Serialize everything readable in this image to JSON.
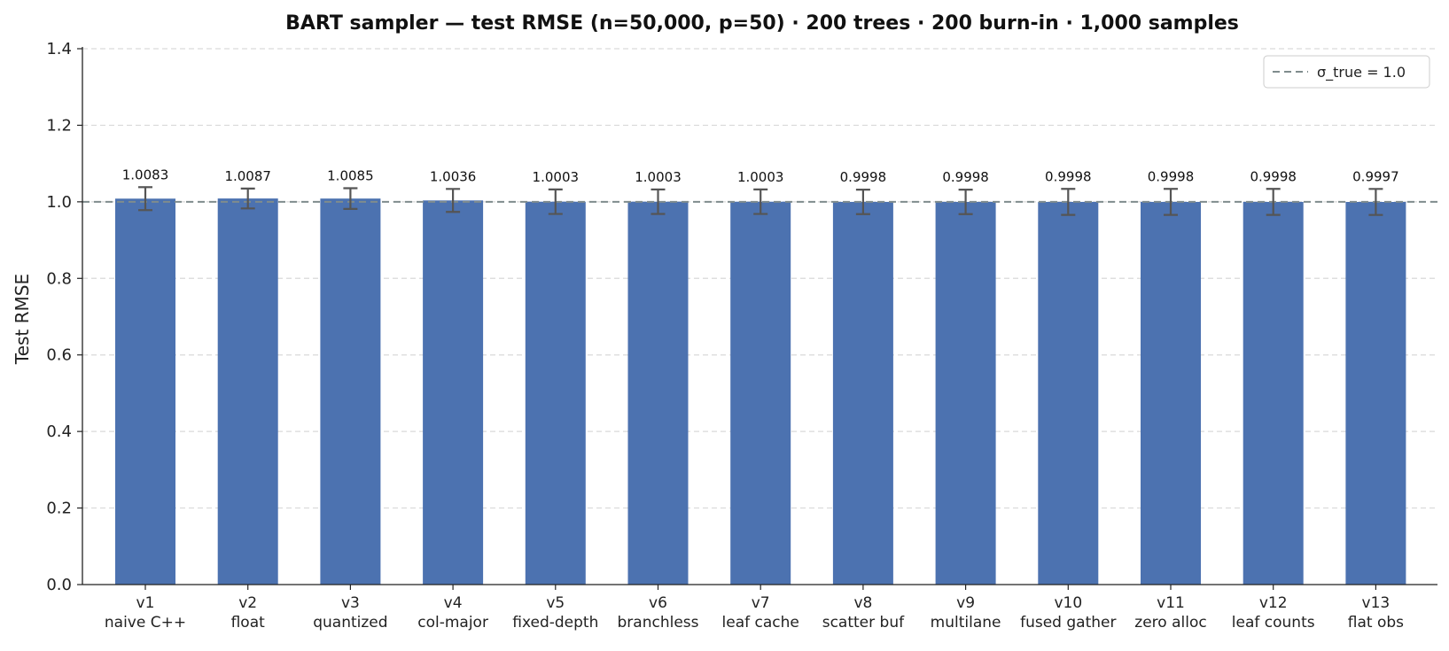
{
  "chart_data": {
    "type": "bar",
    "title": "BART sampler — test RMSE  (n=50,000, p=50)  ·  200 trees · 200 burn-in · 1,000 samples",
    "xlabel": "",
    "ylabel": "Test RMSE",
    "ylim": [
      0,
      1.4
    ],
    "yticks": [
      "0.0",
      "0.2",
      "0.4",
      "0.6",
      "0.8",
      "1.0",
      "1.2",
      "1.4"
    ],
    "grid": "horizontal dashed",
    "legend_position": "top-right",
    "bar_color": "#4c72b0",
    "errorbar_color": "#555555",
    "categories": [
      {
        "version": "v1",
        "label": "naive C++"
      },
      {
        "version": "v2",
        "label": "float"
      },
      {
        "version": "v3",
        "label": "quantized"
      },
      {
        "version": "v4",
        "label": "col-major"
      },
      {
        "version": "v5",
        "label": "fixed-depth"
      },
      {
        "version": "v6",
        "label": "branchless"
      },
      {
        "version": "v7",
        "label": "leaf cache"
      },
      {
        "version": "v8",
        "label": "scatter buf"
      },
      {
        "version": "v9",
        "label": "multilane"
      },
      {
        "version": "v10",
        "label": "fused gather"
      },
      {
        "version": "v11",
        "label": "zero alloc"
      },
      {
        "version": "v12",
        "label": "leaf counts"
      },
      {
        "version": "v13",
        "label": "flat obs"
      }
    ],
    "values": [
      1.0083,
      1.0087,
      1.0085,
      1.0036,
      1.0003,
      1.0003,
      1.0003,
      0.9998,
      0.9998,
      0.9998,
      0.9998,
      0.9998,
      0.9997
    ],
    "value_labels": [
      "1.0083",
      "1.0087",
      "1.0085",
      "1.0036",
      "1.0003",
      "1.0003",
      "1.0003",
      "0.9998",
      "0.9998",
      "0.9998",
      "0.9998",
      "0.9998",
      "0.9997"
    ],
    "error": [
      0.03,
      0.026,
      0.027,
      0.03,
      0.032,
      0.032,
      0.032,
      0.032,
      0.032,
      0.034,
      0.034,
      0.034,
      0.034
    ],
    "reference_line": {
      "value": 1.0,
      "label": "σ_true = 1.0",
      "color": "#7f8c8d"
    }
  }
}
